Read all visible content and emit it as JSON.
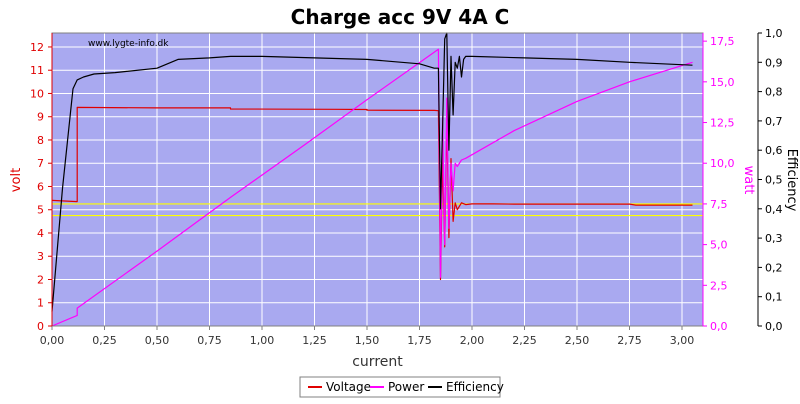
{
  "chart_data": {
    "type": "line",
    "title": "Charge acc 9V 4A C",
    "watermark": "www.lygte-info.dk",
    "xlabel": "current",
    "ylabel_left": "volt",
    "ylabel_right1": "watt",
    "ylabel_right2": "Efficiency",
    "xlim": [
      0,
      3.1
    ],
    "ylim_volt": [
      0,
      12.6
    ],
    "ylim_watt": [
      0,
      18.0
    ],
    "ylim_eff": [
      0,
      1.0
    ],
    "x_ticks": [
      "0,00",
      "0,25",
      "0,50",
      "0,75",
      "1,00",
      "1,25",
      "1,50",
      "1,75",
      "2,00",
      "2,25",
      "2,50",
      "2,75",
      "3,00"
    ],
    "x_tick_values": [
      0,
      0.25,
      0.5,
      0.75,
      1.0,
      1.25,
      1.5,
      1.75,
      2.0,
      2.25,
      2.5,
      2.75,
      3.0
    ],
    "volt_ticks": [
      "0",
      "1",
      "2",
      "3",
      "4",
      "5",
      "6",
      "7",
      "8",
      "9",
      "10",
      "11",
      "12"
    ],
    "volt_tick_values": [
      0,
      1,
      2,
      3,
      4,
      5,
      6,
      7,
      8,
      9,
      10,
      11,
      12
    ],
    "watt_ticks": [
      "0,0",
      "2,5",
      "5,0",
      "7,5",
      "10,0",
      "12,5",
      "15,0",
      "17,5"
    ],
    "watt_tick_values": [
      0,
      2.5,
      5.0,
      7.5,
      10.0,
      12.5,
      15.0,
      17.5
    ],
    "eff_ticks": [
      "0,0",
      "0,1",
      "0,2",
      "0,3",
      "0,4",
      "0,5",
      "0,6",
      "0,7",
      "0,8",
      "0,9",
      "1,0"
    ],
    "eff_tick_values": [
      0,
      0.1,
      0.2,
      0.3,
      0.4,
      0.5,
      0.6,
      0.7,
      0.8,
      0.9,
      1.0
    ],
    "reference_lines_volt": [
      5.25,
      4.75
    ],
    "legend_placement": "bottom-center",
    "grid": true,
    "colors": {
      "plot_bg": "#a9a9f0",
      "grid": "#ffffff",
      "voltage": "#e00000",
      "power": "#ff00ff",
      "efficiency": "#000000",
      "reference": "#ffff00",
      "volt_axis": "#e00000",
      "watt_axis": "#ff00ff"
    },
    "series": [
      {
        "name": "Voltage",
        "axis": "volt",
        "x": [
          0.0,
          0.12,
          0.12,
          0.5,
          0.85,
          0.85,
          1.35,
          1.5,
          1.5,
          1.82,
          1.84,
          1.85,
          1.86,
          1.87,
          1.88,
          1.89,
          1.9,
          1.91,
          1.92,
          1.93,
          1.95,
          1.97,
          2.0,
          2.1,
          2.2,
          2.5,
          2.75,
          2.78,
          3.05
        ],
        "y": [
          5.4,
          5.35,
          9.4,
          9.38,
          9.38,
          9.33,
          9.32,
          9.31,
          9.28,
          9.27,
          9.26,
          2.0,
          7.3,
          3.4,
          8.9,
          3.8,
          7.2,
          4.5,
          5.3,
          5.0,
          5.3,
          5.22,
          5.25,
          5.25,
          5.24,
          5.24,
          5.24,
          5.2,
          5.2
        ]
      },
      {
        "name": "Power",
        "axis": "watt",
        "x": [
          0.0,
          0.12,
          0.12,
          0.5,
          0.85,
          1.2,
          1.5,
          1.84,
          1.85,
          1.86,
          1.87,
          1.88,
          1.89,
          1.9,
          1.91,
          1.92,
          1.93,
          1.95,
          1.97,
          2.2,
          2.5,
          2.75,
          3.05
        ],
        "y": [
          0.0,
          0.65,
          1.1,
          4.6,
          7.9,
          11.1,
          13.9,
          17.0,
          3.0,
          12.8,
          5.0,
          14.0,
          6.0,
          10.0,
          8.3,
          10.0,
          9.8,
          10.2,
          10.3,
          12.0,
          13.8,
          15.0,
          16.2
        ]
      },
      {
        "name": "Efficiency",
        "axis": "efficiency",
        "x": [
          0.0,
          0.05,
          0.1,
          0.12,
          0.15,
          0.2,
          0.3,
          0.5,
          0.6,
          0.75,
          0.85,
          1.0,
          1.25,
          1.5,
          1.75,
          1.82,
          1.84,
          1.85,
          1.86,
          1.87,
          1.88,
          1.89,
          1.9,
          1.91,
          1.92,
          1.93,
          1.94,
          1.95,
          1.96,
          1.97,
          2.0,
          2.25,
          2.5,
          2.75,
          3.05
        ],
        "y": [
          0.05,
          0.47,
          0.81,
          0.84,
          0.85,
          0.86,
          0.865,
          0.88,
          0.91,
          0.915,
          0.92,
          0.92,
          0.915,
          0.91,
          0.895,
          0.88,
          0.88,
          0.4,
          0.68,
          0.98,
          1.0,
          0.6,
          0.92,
          0.72,
          0.9,
          0.88,
          0.92,
          0.85,
          0.91,
          0.92,
          0.92,
          0.915,
          0.91,
          0.9,
          0.89
        ]
      }
    ]
  }
}
